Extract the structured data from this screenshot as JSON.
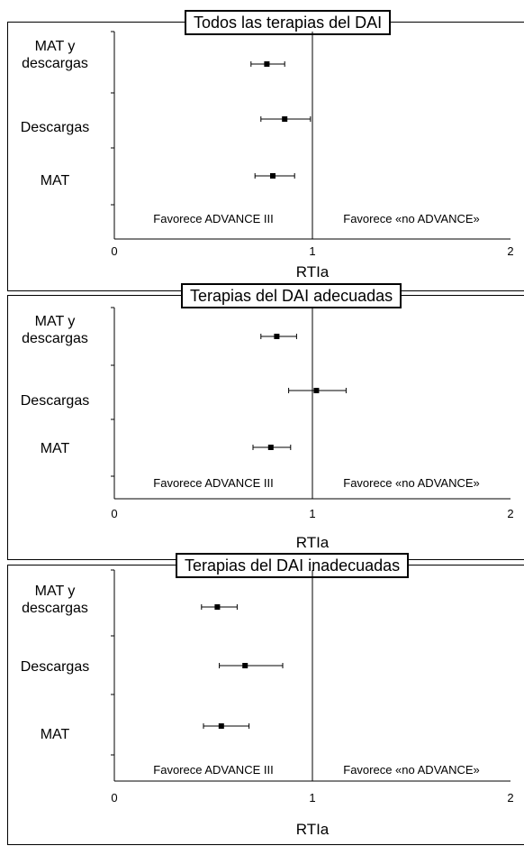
{
  "chart_data": [
    {
      "type": "forest",
      "title": "Todos las terapias del DAI",
      "xlabel": "RTIa",
      "xlim": [
        0,
        2
      ],
      "xticks": [
        "0",
        "1",
        "2"
      ],
      "reference_line": 1,
      "left_annotation": "Favorece ADVANCE III",
      "right_annotation": "Favorece «no ADVANCE»",
      "categories": [
        "MAT y\ndescargas",
        "Descargas",
        "MAT"
      ],
      "values": [
        0.77,
        0.86,
        0.8
      ],
      "ci_low": [
        0.69,
        0.74,
        0.71
      ],
      "ci_high": [
        0.86,
        0.99,
        0.91
      ]
    },
    {
      "type": "forest",
      "title": "Terapias del DAI adecuadas",
      "xlabel": "RTIa",
      "xlim": [
        0,
        2
      ],
      "xticks": [
        "0",
        "1",
        "2"
      ],
      "reference_line": 1,
      "left_annotation": "Favorece ADVANCE III",
      "right_annotation": "Favorece «no ADVANCE»",
      "categories": [
        "MAT y\ndescargas",
        "Descargas",
        "MAT"
      ],
      "values": [
        0.82,
        1.02,
        0.79
      ],
      "ci_low": [
        0.74,
        0.88,
        0.7
      ],
      "ci_high": [
        0.92,
        1.17,
        0.89
      ]
    },
    {
      "type": "forest",
      "title": "Terapias del DAI inadecuadas",
      "xlabel": "RTIa",
      "xlim": [
        0,
        2
      ],
      "xticks": [
        "0",
        "1",
        "2"
      ],
      "reference_line": 1,
      "left_annotation": "Favorece ADVANCE III",
      "right_annotation": "Favorece «no ADVANCE»",
      "categories": [
        "MAT y\ndescargas",
        "Descargas",
        "MAT"
      ],
      "values": [
        0.52,
        0.66,
        0.54
      ],
      "ci_low": [
        0.44,
        0.53,
        0.45
      ],
      "ci_high": [
        0.62,
        0.85,
        0.68
      ]
    }
  ]
}
